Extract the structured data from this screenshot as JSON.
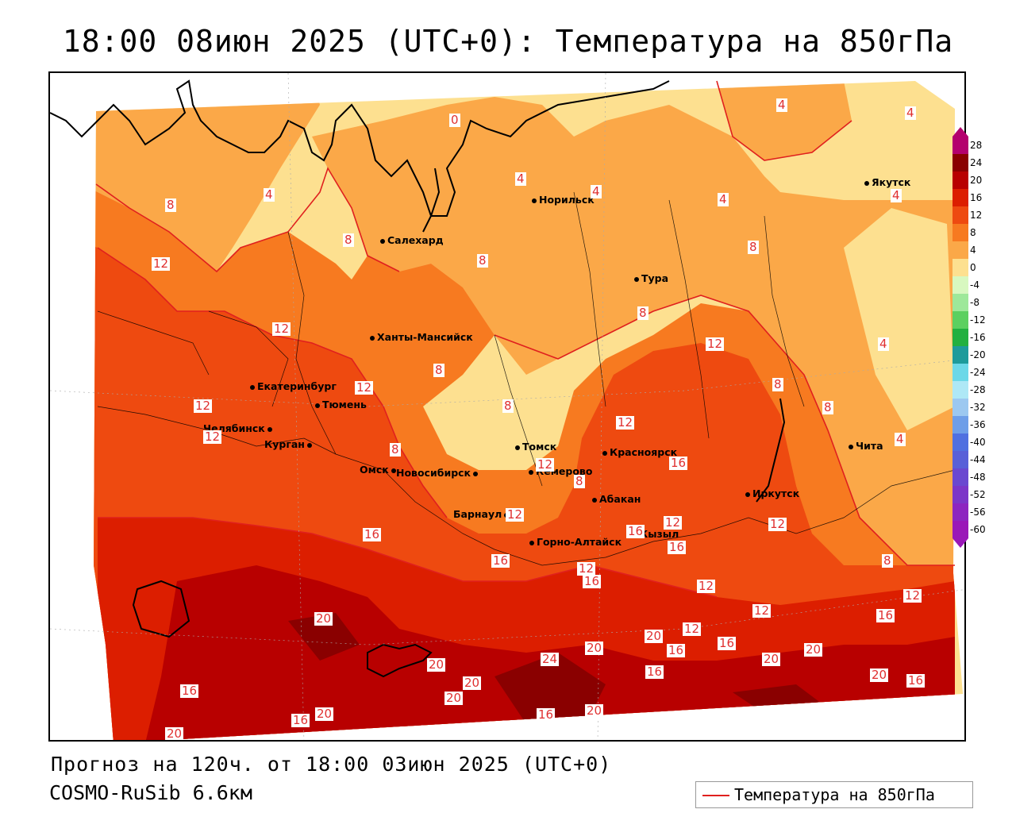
{
  "title": "18:00 08июн 2025 (UTC+0): Температура на 850гПа",
  "footer": {
    "forecast": "Прогноз на 120ч. от 18:00 03июн 2025 (UTC+0)",
    "model": "COSMO-RuSib 6.6км"
  },
  "legend": {
    "label": "Температура на 850гПа",
    "line_color": "#e0201e"
  },
  "scale": {
    "labels": [
      "28",
      "24",
      "20",
      "16",
      "12",
      "8",
      "4",
      "0",
      "-4",
      "-8",
      "-12",
      "-16",
      "-20",
      "-24",
      "-28",
      "-32",
      "-36",
      "-40",
      "-44",
      "-48",
      "-52",
      "-56",
      "-60"
    ],
    "colors": [
      "#b4006e",
      "#8a0000",
      "#b80000",
      "#dc1e00",
      "#ee4a10",
      "#f77a20",
      "#fba848",
      "#fde090",
      "#d8f8c0",
      "#9ee89a",
      "#5cd060",
      "#22b040",
      "#1d9b9b",
      "#6cd8e8",
      "#aee8f6",
      "#9cc8f0",
      "#6e9ee8",
      "#5070e0",
      "#5860d8",
      "#6a48d0",
      "#7c36c8",
      "#8d26c0",
      "#9a18b8"
    ]
  },
  "cities": [
    {
      "name": "Салехард"
    },
    {
      "name": "Норильск"
    },
    {
      "name": "Якутск"
    },
    {
      "name": "Тура"
    },
    {
      "name": "Ханты-Мансийск"
    },
    {
      "name": "Екатеринбург"
    },
    {
      "name": "Тюмень"
    },
    {
      "name": "Челябинск"
    },
    {
      "name": "Курган"
    },
    {
      "name": "Омск"
    },
    {
      "name": "Новосибирск"
    },
    {
      "name": "Томск"
    },
    {
      "name": "Кемерово"
    },
    {
      "name": "Красноярск"
    },
    {
      "name": "Абакан"
    },
    {
      "name": "Барнаул"
    },
    {
      "name": "Горно-Алтайск"
    },
    {
      "name": "Кызыл"
    },
    {
      "name": "Иркутск"
    },
    {
      "name": "Чита"
    }
  ],
  "isolines": [
    "0",
    "4",
    "4",
    "4",
    "4",
    "4",
    "4",
    "4",
    "4",
    "4",
    "8",
    "8",
    "8",
    "8",
    "8",
    "8",
    "8",
    "8",
    "8",
    "8",
    "8",
    "8",
    "12",
    "12",
    "12",
    "12",
    "12",
    "12",
    "12",
    "12",
    "12",
    "12",
    "12",
    "12",
    "12",
    "12",
    "12",
    "12",
    "16",
    "16",
    "16",
    "16",
    "16",
    "16",
    "16",
    "16",
    "16",
    "16",
    "16",
    "16",
    "16",
    "16",
    "20",
    "20",
    "20",
    "20",
    "20",
    "20",
    "20",
    "20",
    "20",
    "20",
    "20",
    "20",
    "24"
  ],
  "colors": {
    "t0_4": "#fde090",
    "t4_8": "#fba848",
    "t8_12": "#f77a20",
    "t12_16": "#ee4a10",
    "t16_20": "#dc1e00",
    "t20_24": "#b80000",
    "t24_28": "#8a0000",
    "isoline": "#e0201e"
  }
}
